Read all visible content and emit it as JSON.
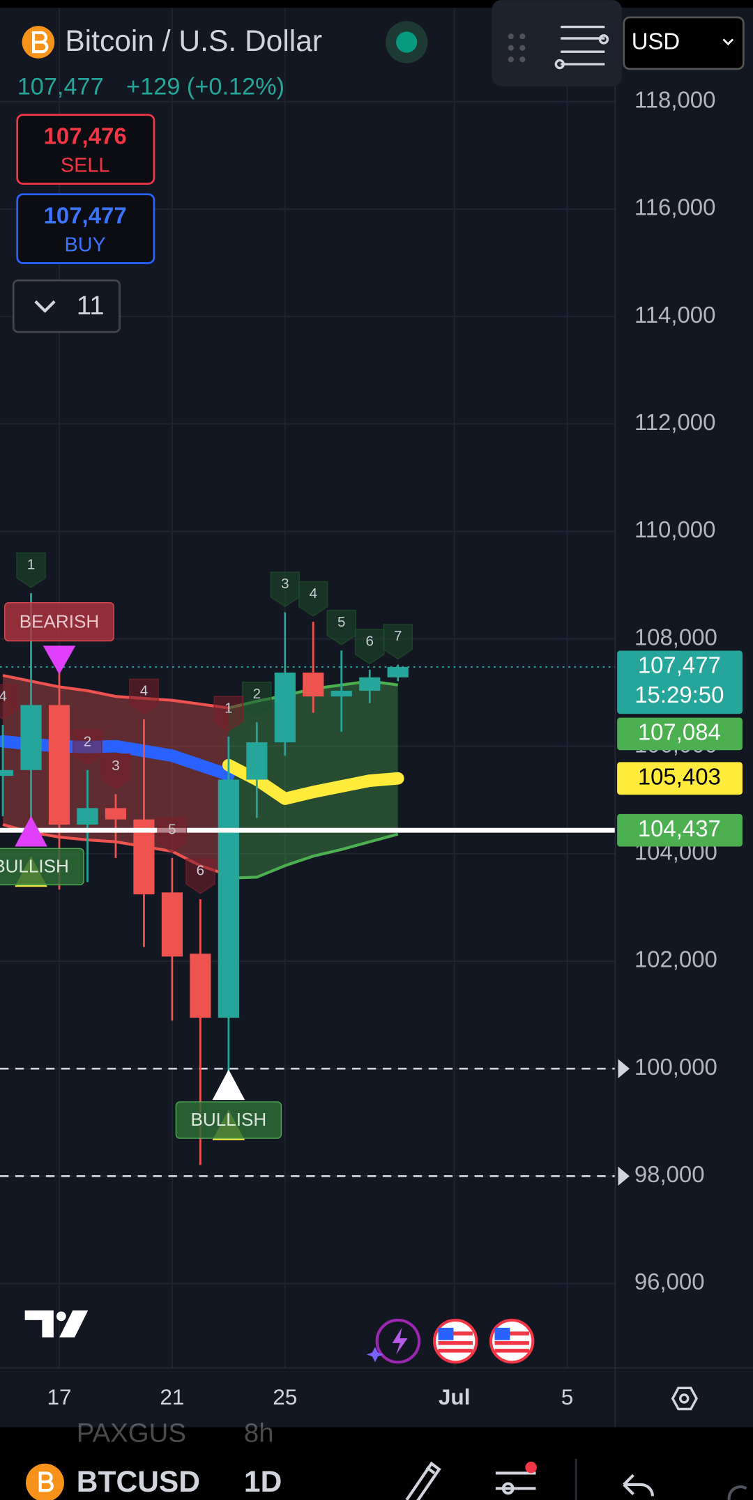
{
  "header": {
    "title": "Bitcoin / U.S. Dollar",
    "price": "107,477",
    "change": "+129 (+0.12%)",
    "currency": "USD"
  },
  "trade": {
    "sell_price": "107,476",
    "sell": "SELL",
    "buy_price": "107,477",
    "buy": "BUY"
  },
  "indicators_count": "11",
  "chart_data": {
    "type": "candlestick",
    "x": [
      15,
      16,
      17,
      18,
      19,
      20,
      21,
      22,
      23,
      24,
      25,
      26,
      27,
      28,
      29
    ],
    "open": [
      105450,
      105558,
      106768,
      104543,
      104850,
      104640,
      103280,
      102140,
      100948,
      105380,
      106074,
      107373,
      106928,
      107035,
      107284
    ],
    "high": [
      106400,
      108851,
      107783,
      105558,
      105110,
      106501,
      103920,
      103155,
      106181,
      106448,
      108495,
      108317,
      107783,
      107427,
      107520
    ],
    "low": [
      104700,
      104668,
      103333,
      103475,
      103920,
      102265,
      100894,
      98207,
      99951,
      104668,
      105825,
      106626,
      106270,
      106804,
      107213
    ],
    "close": [
      105558,
      106768,
      104543,
      104850,
      104640,
      103244,
      102087,
      100948,
      105380,
      106074,
      107373,
      106928,
      107035,
      107284,
      107477
    ],
    "up_color": "#26a69a",
    "down_color": "#ef5350",
    "xlim": [
      14.9,
      36.7
    ],
    "ylim": [
      94430,
      119890
    ],
    "xticks": [
      17,
      21,
      25,
      {
        "value": 31,
        "label": "Jul"
      },
      {
        "value": 35,
        "label": "5"
      }
    ],
    "yticks": [
      {
        "value": 96000,
        "label": "96,000"
      },
      {
        "value": 98000,
        "label": "98,000"
      },
      {
        "value": 100000,
        "label": "100,000"
      },
      {
        "value": 102000,
        "label": "102,000"
      },
      {
        "value": 104000,
        "label": "104,000"
      },
      {
        "value": 106000,
        "label": "106,000"
      },
      {
        "value": 108000,
        "label": "108,000"
      },
      {
        "value": 110000,
        "label": "110,000"
      },
      {
        "value": 112000,
        "label": "112,000"
      },
      {
        "value": 114000,
        "label": "114,000"
      },
      {
        "value": 116000,
        "label": "116,000"
      },
      {
        "value": 118000,
        "label": "118,000"
      }
    ],
    "grid": true,
    "bands": [
      {
        "color": "#ef5350",
        "x": [
          15,
          16,
          17,
          18,
          19,
          20,
          21,
          22,
          23
        ],
        "upper": [
          107320,
          107213,
          107106,
          107035,
          106928,
          106893,
          106857,
          106786,
          106715
        ],
        "lower": [
          104543,
          104401,
          104311,
          104258,
          104223,
          104134,
          104045,
          103778,
          103600
        ]
      },
      {
        "color": "#4caf50",
        "x": [
          23,
          24,
          25,
          26,
          27,
          28,
          29
        ],
        "upper": [
          106715,
          106839,
          106946,
          107071,
          107142,
          107213,
          107142
        ],
        "lower": [
          103546,
          103564,
          103778,
          103956,
          104080,
          104223,
          104365
        ]
      }
    ],
    "lines": [
      {
        "color": "#2962ff",
        "x": [
          15,
          16,
          17,
          18,
          19,
          20,
          21,
          22,
          23
        ],
        "values": [
          106092,
          106038,
          106003,
          105985,
          106003,
          105914,
          105825,
          105647,
          105470
        ]
      },
      {
        "color": "#ffeb3b",
        "x": [
          23,
          24,
          25,
          26,
          27,
          28,
          29
        ],
        "values": [
          105650,
          105380,
          105024,
          105150,
          105255,
          105360,
          105403
        ]
      }
    ],
    "bullish_counts": [
      null,
      "1",
      null,
      null,
      null,
      null,
      null,
      null,
      null,
      "2",
      "3",
      "4",
      "5",
      "6",
      "7"
    ],
    "bearish_counts": [
      "4",
      null,
      null,
      "2",
      "3",
      "4",
      "5",
      "6",
      "1",
      null,
      null,
      null,
      null,
      null,
      null
    ],
    "signals": [
      {
        "text": "BEARISH",
        "x": 17,
        "direction": "down",
        "color": "#e040fb"
      },
      {
        "text": "BULLISH",
        "x": 16,
        "direction": "up",
        "color": "#e040fb"
      },
      {
        "text": "BULLISH",
        "x": 23,
        "direction": "up",
        "color": "#ffffff"
      }
    ],
    "alerts": [
      100000,
      98000
    ],
    "price_badges": [
      {
        "value": 107477,
        "label": "107,477",
        "sub": "15:29:50",
        "color": "#26a69a"
      },
      {
        "value": 107084,
        "label": "107,084",
        "color": "#4caf50"
      },
      {
        "value": 105403,
        "label": "105,403",
        "color": "#ffeb3b"
      },
      {
        "value": 104437,
        "label": "104,437",
        "color": "#4caf50"
      }
    ]
  },
  "watchlist_peek": {
    "symbol": "PAXGUS",
    "interval": "8h"
  },
  "toolbar": {
    "symbol": "BTCUSD",
    "interval": "1D"
  }
}
